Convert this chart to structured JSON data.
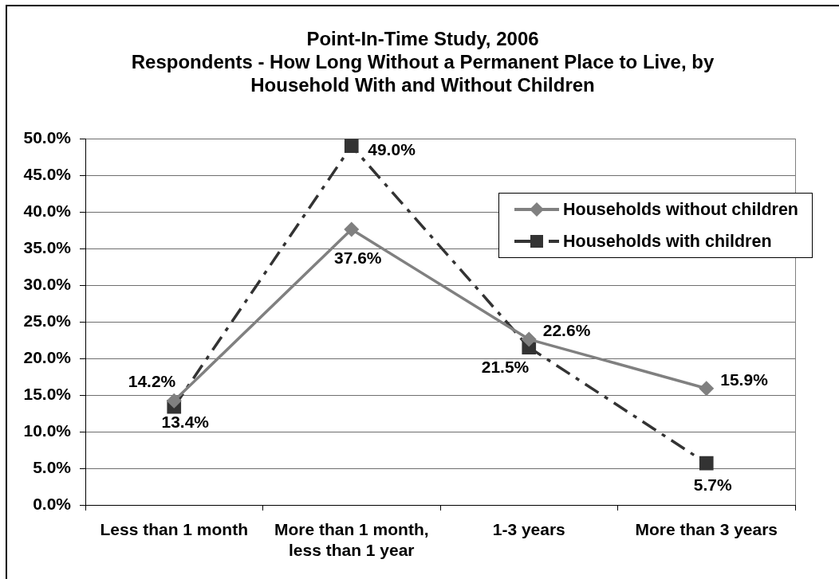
{
  "chart_data": {
    "type": "line",
    "title": "Point-In-Time Study, 2006",
    "subtitle": "Respondents - How Long Without a Permanent Place to Live, by Household With and Without Children",
    "categories": [
      "Less than 1 month",
      "More than 1 month, less than 1 year",
      "1-3 years",
      "More than 3 years"
    ],
    "series": [
      {
        "name": "Households without children",
        "color": "#808080",
        "marker": "diamond",
        "line_style": "solid",
        "values": [
          14.2,
          37.6,
          22.6,
          15.9
        ],
        "value_labels": [
          "14.2%",
          "37.6%",
          "22.6%",
          "15.9%"
        ]
      },
      {
        "name": "Households with children",
        "color": "#333333",
        "marker": "square",
        "line_style": "dashed",
        "values": [
          13.4,
          49.0,
          21.5,
          5.7
        ],
        "value_labels": [
          "13.4%",
          "49.0%",
          "21.5%",
          "5.7%"
        ]
      }
    ],
    "ylim": [
      0,
      50
    ],
    "yticks": [
      {
        "value": 0,
        "label": "0.0%"
      },
      {
        "value": 5,
        "label": "5.0%"
      },
      {
        "value": 10,
        "label": "10.0%"
      },
      {
        "value": 15,
        "label": "15.0%"
      },
      {
        "value": 20,
        "label": "20.0%"
      },
      {
        "value": 25,
        "label": "25.0%"
      },
      {
        "value": 30,
        "label": "30.0%"
      },
      {
        "value": 35,
        "label": "35.0%"
      },
      {
        "value": 40,
        "label": "40.0%"
      },
      {
        "value": 45,
        "label": "45.0%"
      },
      {
        "value": 50,
        "label": "50.0%"
      }
    ],
    "grid": "y",
    "legend": "top right"
  }
}
